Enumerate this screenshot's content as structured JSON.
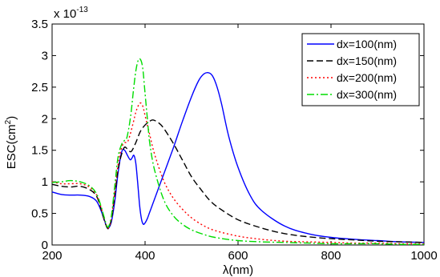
{
  "chart_data": {
    "type": "line",
    "xlabel": "λ(nm)",
    "ylabel_base": "ESC(cm",
    "ylabel_sup": "2",
    "ylabel_close": ")",
    "multiplier_base": "x 10",
    "multiplier_exp": "-13",
    "xlim": [
      200,
      1000
    ],
    "ylim": [
      0,
      3.5
    ],
    "xticks": [
      200,
      400,
      600,
      800,
      1000
    ],
    "xtick_labels": [
      "200",
      "400",
      "600",
      "800",
      "1000"
    ],
    "yticks": [
      0,
      0.5,
      1,
      1.5,
      2,
      2.5,
      3,
      3.5
    ],
    "ytick_labels": [
      "0",
      "0.5",
      "1",
      "1.5",
      "2",
      "2.5",
      "3",
      "3.5"
    ],
    "grid": false,
    "legend_position": "top-right",
    "series": [
      {
        "name": "dx=100(nm)",
        "color": "#0000ff",
        "dash": "solid",
        "x": [
          200,
          220,
          240,
          260,
          280,
          295,
          305,
          312,
          318,
          322,
          328,
          335,
          342,
          350,
          356,
          362,
          368,
          372,
          376,
          380,
          384,
          388,
          392,
          396,
          400,
          405,
          410,
          420,
          440,
          460,
          480,
          500,
          515,
          525,
          535,
          545,
          555,
          565,
          580,
          600,
          625,
          650,
          700,
          750,
          800,
          850,
          900,
          950,
          1000
        ],
        "y": [
          0.84,
          0.8,
          0.79,
          0.79,
          0.77,
          0.7,
          0.55,
          0.4,
          0.28,
          0.27,
          0.38,
          0.7,
          1.15,
          1.48,
          1.5,
          1.42,
          1.35,
          1.38,
          1.42,
          1.3,
          1.0,
          0.65,
          0.42,
          0.33,
          0.35,
          0.42,
          0.52,
          0.72,
          1.12,
          1.52,
          1.95,
          2.35,
          2.6,
          2.7,
          2.73,
          2.68,
          2.5,
          2.22,
          1.72,
          1.23,
          0.8,
          0.55,
          0.3,
          0.18,
          0.12,
          0.09,
          0.07,
          0.05,
          0.04
        ]
      },
      {
        "name": "dx=150(nm)",
        "color": "#000000",
        "dash": "8,4",
        "x": [
          200,
          220,
          240,
          260,
          280,
          295,
          305,
          312,
          318,
          322,
          328,
          335,
          342,
          350,
          356,
          362,
          370,
          380,
          390,
          400,
          410,
          418,
          430,
          440,
          460,
          480,
          500,
          520,
          540,
          560,
          600,
          650,
          700,
          750,
          800,
          850,
          900,
          950,
          1000
        ],
        "y": [
          0.96,
          0.93,
          0.92,
          0.93,
          0.88,
          0.78,
          0.58,
          0.4,
          0.28,
          0.27,
          0.42,
          0.8,
          1.2,
          1.45,
          1.55,
          1.52,
          1.48,
          1.62,
          1.8,
          1.9,
          1.96,
          1.98,
          1.93,
          1.85,
          1.62,
          1.35,
          1.08,
          0.88,
          0.7,
          0.58,
          0.4,
          0.27,
          0.18,
          0.13,
          0.1,
          0.08,
          0.06,
          0.05,
          0.04
        ]
      },
      {
        "name": "dx=200(nm)",
        "color": "#ff0000",
        "dash": "2,3",
        "x": [
          200,
          220,
          240,
          260,
          280,
          295,
          305,
          312,
          318,
          322,
          328,
          335,
          342,
          350,
          356,
          362,
          368,
          375,
          380,
          385,
          390,
          395,
          400,
          410,
          420,
          440,
          460,
          480,
          500,
          525,
          550,
          600,
          650,
          700,
          750,
          800,
          850,
          900,
          950,
          1000
        ],
        "y": [
          1.0,
          0.97,
          0.97,
          0.97,
          0.92,
          0.8,
          0.6,
          0.42,
          0.29,
          0.28,
          0.44,
          0.85,
          1.28,
          1.55,
          1.62,
          1.63,
          1.75,
          1.95,
          2.1,
          2.2,
          2.25,
          2.2,
          2.05,
          1.75,
          1.45,
          1.02,
          0.75,
          0.57,
          0.43,
          0.31,
          0.23,
          0.14,
          0.09,
          0.06,
          0.05,
          0.04,
          0.03,
          0.03,
          0.02,
          0.02
        ]
      },
      {
        "name": "dx=300(nm)",
        "color": "#00dd00",
        "dash": "9,3,2,3",
        "x": [
          200,
          220,
          240,
          260,
          280,
          295,
          305,
          312,
          318,
          322,
          328,
          335,
          342,
          350,
          355,
          360,
          365,
          370,
          375,
          380,
          385,
          390,
          395,
          400,
          405,
          410,
          420,
          440,
          460,
          480,
          500,
          525,
          550,
          600,
          650,
          700,
          750,
          800,
          850,
          900,
          950,
          1000
        ],
        "y": [
          0.99,
          1.0,
          1.02,
          1.0,
          0.94,
          0.82,
          0.62,
          0.44,
          0.3,
          0.3,
          0.48,
          0.95,
          1.4,
          1.6,
          1.65,
          1.68,
          1.85,
          2.1,
          2.45,
          2.75,
          2.92,
          2.94,
          2.8,
          2.4,
          2.0,
          1.62,
          1.2,
          0.72,
          0.47,
          0.33,
          0.24,
          0.17,
          0.12,
          0.07,
          0.05,
          0.04,
          0.03,
          0.02,
          0.02,
          0.02,
          0.01,
          0.01
        ]
      }
    ]
  }
}
